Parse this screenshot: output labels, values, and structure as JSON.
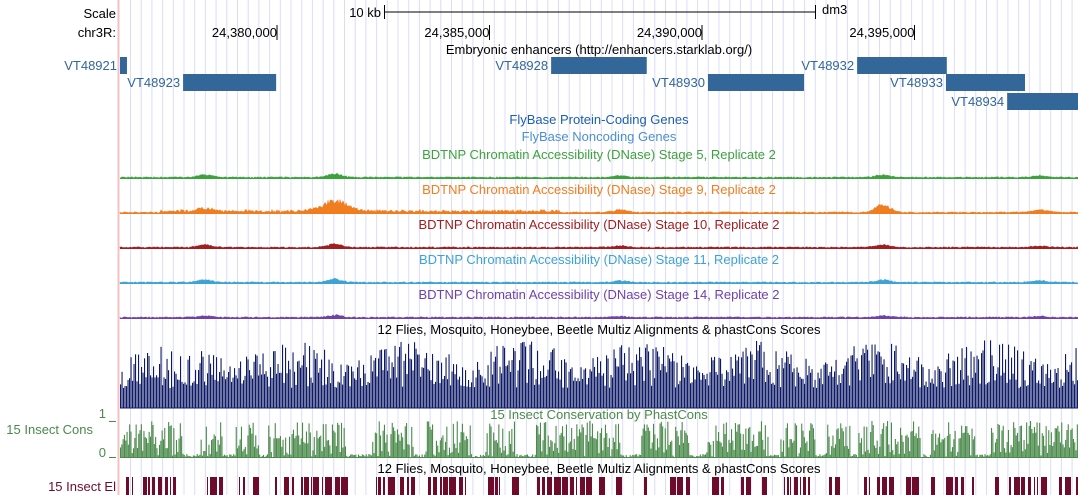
{
  "header": {
    "scale_label": "Scale",
    "scale_bar_label": "10 kb",
    "assembly": "dm3",
    "chrom_label": "chr3R:",
    "ticks": [
      {
        "pos": 24380000,
        "label": "24,380,000"
      },
      {
        "pos": 24385000,
        "label": "24,385,000"
      },
      {
        "pos": 24390000,
        "label": "24,390,000"
      },
      {
        "pos": 24395000,
        "label": "24,395,000"
      }
    ]
  },
  "enhancers": {
    "title": "Embryonic enhancers (http://enhancers.starklab.org/)",
    "color": "#336699",
    "items": [
      {
        "name": "VT48921",
        "start": 24376300,
        "end": 24376470,
        "row": 0
      },
      {
        "name": "VT48923",
        "start": 24377790,
        "end": 24379980,
        "row": 1
      },
      {
        "name": "VT48928",
        "start": 24386450,
        "end": 24388700,
        "row": 0
      },
      {
        "name": "VT48930",
        "start": 24390140,
        "end": 24392400,
        "row": 1
      },
      {
        "name": "VT48932",
        "start": 24393650,
        "end": 24395760,
        "row": 0
      },
      {
        "name": "VT48933",
        "start": 24395740,
        "end": 24397600,
        "row": 1
      },
      {
        "name": "VT48934",
        "start": 24397180,
        "end": 24398850,
        "row": 2
      }
    ]
  },
  "gene_tracks": [
    {
      "label": "FlyBase Protein-Coding Genes",
      "color": "#1c5fae"
    },
    {
      "label": "FlyBase Noncoding Genes",
      "color": "#4a90d0"
    }
  ],
  "dnase_tracks": [
    {
      "label": "BDTNP Chromatin Accessibility (DNase) Stage 5, Replicate 2",
      "color": "#3ca33c"
    },
    {
      "label": "BDTNP Chromatin Accessibility (DNase) Stage 9, Replicate 2",
      "color": "#f07d1e"
    },
    {
      "label": "BDTNP Chromatin Accessibility (DNase) Stage 10, Replicate 2",
      "color": "#a01e1e"
    },
    {
      "label": "BDTNP Chromatin Accessibility (DNase) Stage 11, Replicate 2",
      "color": "#3ca3d2"
    },
    {
      "label": "BDTNP Chromatin Accessibility (DNase) Stage 14, Replicate 2",
      "color": "#7042a8"
    }
  ],
  "multiz": {
    "label": "12 Flies, Mosquito, Honeybee, Beetle Multiz Alignments & phastCons Scores",
    "color": "#0e1a66"
  },
  "phastcons": {
    "label": "15 Insect Conservation by PhastCons",
    "side_label": "15 Insect Cons",
    "y_max": "1",
    "y_min": "0",
    "color": "#4a8a4a"
  },
  "elements": {
    "label": "12 Flies, Mosquito, Honeybee, Beetle Multiz Alignments & phastCons Scores",
    "side_label": "15 Insect El",
    "color": "#6e0a2a"
  }
}
